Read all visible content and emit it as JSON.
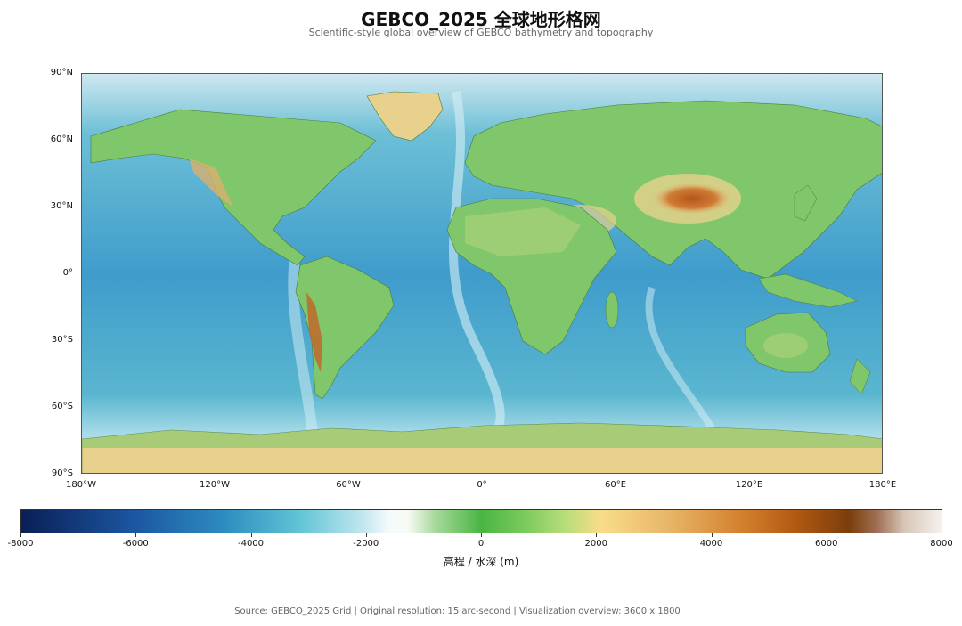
{
  "title": "GEBCO_2025 全球地形格网",
  "subtitle": "Scientific-style global overview of GEBCO bathymetry and topography",
  "map": {
    "lat_ticks": [
      "90°N",
      "60°N",
      "30°N",
      "0°",
      "30°S",
      "60°S",
      "90°S"
    ],
    "lon_ticks": [
      "180°W",
      "120°W",
      "60°W",
      "0°",
      "60°E",
      "120°E",
      "180°E"
    ],
    "ocean_colors": [
      "#2a79b7",
      "#5ab6cf",
      "#bfe4ee"
    ],
    "land_colors": [
      "#7fc76a",
      "#e7d18d",
      "#c0692a"
    ]
  },
  "colorbar": {
    "ticks": [
      "-8000",
      "-6000",
      "-4000",
      "-2000",
      "0",
      "2000",
      "4000",
      "6000",
      "8000"
    ],
    "label": "高程 / 水深 (m)",
    "range": [
      -8000,
      8000
    ]
  },
  "source": "Source: GEBCO_2025 Grid | Original resolution: 15 arc-second | Visualization overview: 3600 x 1800"
}
